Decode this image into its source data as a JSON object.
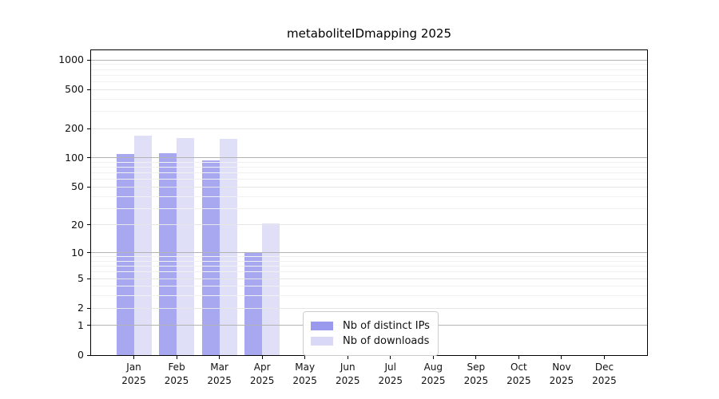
{
  "chart_data": {
    "type": "bar",
    "title": "metaboliteIDmapping 2025",
    "categories": [
      "Jan",
      "Feb",
      "Mar",
      "Apr",
      "May",
      "Jun",
      "Jul",
      "Aug",
      "Sep",
      "Oct",
      "Nov",
      "Dec"
    ],
    "x_year_label": "2025",
    "series": [
      {
        "name": "Nb of distinct IPs",
        "color": "#9999ee",
        "values": [
          110,
          112,
          95,
          10,
          0,
          0,
          0,
          0,
          0,
          0,
          0,
          0
        ]
      },
      {
        "name": "Nb of downloads",
        "color": "#d9d9f7",
        "values": [
          170,
          161,
          158,
          21,
          0,
          0,
          0,
          0,
          0,
          0,
          0,
          0
        ]
      }
    ],
    "yticks": [
      0,
      1,
      2,
      5,
      10,
      20,
      50,
      100,
      200,
      500,
      1000
    ],
    "ylim": [
      0,
      1253
    ],
    "scale": "log1p",
    "xlabel": "",
    "ylabel": "",
    "grid": "horizontal-major-minor",
    "legend_position": "lower-center-inside",
    "axis_color": "#000000",
    "grid_major_color": "#b3b3b3",
    "grid_minor_color": "#e6e6e6"
  }
}
